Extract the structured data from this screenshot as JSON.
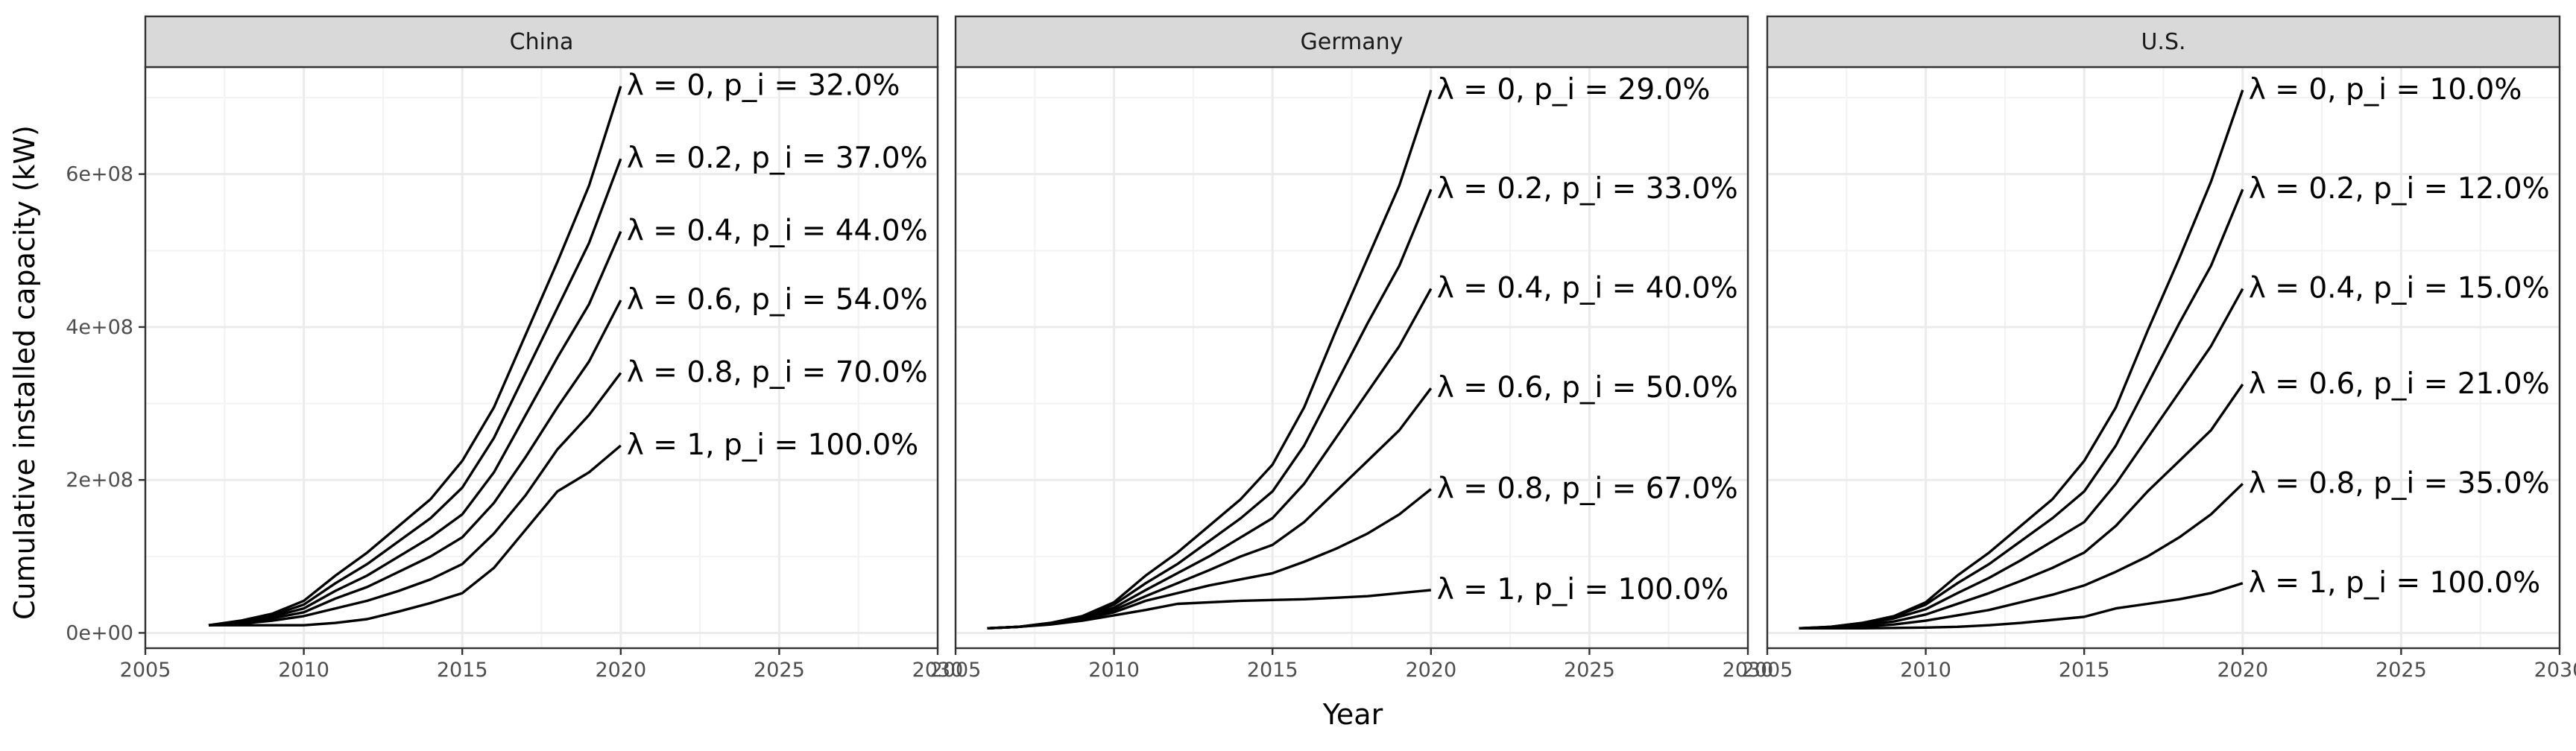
{
  "chart_data": {
    "type": "line",
    "facet_by": "country",
    "xlabel": "Year",
    "ylabel": "Cumulative installed capacity (kW)",
    "xlim": [
      2005,
      2030
    ],
    "ylim": [
      -20000000.0,
      740000000.0
    ],
    "x_ticks": [
      2005,
      2010,
      2015,
      2020,
      2025,
      2030
    ],
    "x_tick_labels": [
      "2005",
      "2010",
      "2015",
      "2020",
      "2025",
      "2030"
    ],
    "y_ticks": [
      0,
      200000000,
      400000000,
      600000000
    ],
    "y_tick_labels": [
      "0e+00",
      "2e+08",
      "4e+08",
      "6e+08"
    ],
    "grid": true,
    "legend": "none",
    "line_color": "#000000",
    "panels": [
      {
        "name": "China",
        "series": [
          {
            "name": "λ = 0, p_i = 32.0%",
            "x": [
              2007,
              2008,
              2009,
              2010,
              2011,
              2012,
              2013,
              2014,
              2015,
              2016,
              2017,
              2018,
              2019,
              2020
            ],
            "values": [
              10000000.0,
              16000000.0,
              25000000.0,
              42000000.0,
              75000000.0,
              105000000.0,
              140000000.0,
              175000000.0,
              225000000.0,
              295000000.0,
              390000000.0,
              485000000.0,
              585000000.0,
              715000000.0
            ]
          },
          {
            "name": "λ = 0.2, p_i = 37.0%",
            "x": [
              2007,
              2008,
              2009,
              2010,
              2011,
              2012,
              2013,
              2014,
              2015,
              2016,
              2017,
              2018,
              2019,
              2020
            ],
            "values": [
              10000000.0,
              15000000.0,
              23000000.0,
              37000000.0,
              65000000.0,
              90000000.0,
              120000000.0,
              150000000.0,
              190000000.0,
              255000000.0,
              340000000.0,
              425000000.0,
              510000000.0,
              620000000.0
            ]
          },
          {
            "name": "λ = 0.4, p_i = 44.0%",
            "x": [
              2007,
              2008,
              2009,
              2010,
              2011,
              2012,
              2013,
              2014,
              2015,
              2016,
              2017,
              2018,
              2019,
              2020
            ],
            "values": [
              10000000.0,
              14000000.0,
              21000000.0,
              32000000.0,
              55000000.0,
              75000000.0,
              100000000.0,
              125000000.0,
              155000000.0,
              210000000.0,
              285000000.0,
              360000000.0,
              430000000.0,
              525000000.0
            ]
          },
          {
            "name": "λ = 0.6, p_i = 54.0%",
            "x": [
              2007,
              2008,
              2009,
              2010,
              2011,
              2012,
              2013,
              2014,
              2015,
              2016,
              2017,
              2018,
              2019,
              2020
            ],
            "values": [
              10000000.0,
              13000000.0,
              19000000.0,
              27000000.0,
              45000000.0,
              60000000.0,
              80000000.0,
              100000000.0,
              125000000.0,
              170000000.0,
              230000000.0,
              295000000.0,
              355000000.0,
              435000000.0
            ]
          },
          {
            "name": "λ = 0.8, p_i = 70.0%",
            "x": [
              2007,
              2008,
              2009,
              2010,
              2011,
              2012,
              2013,
              2014,
              2015,
              2016,
              2017,
              2018,
              2019,
              2020
            ],
            "values": [
              10000000.0,
              12000000.0,
              16000000.0,
              22000000.0,
              32000000.0,
              42000000.0,
              55000000.0,
              70000000.0,
              90000000.0,
              130000000.0,
              180000000.0,
              240000000.0,
              285000000.0,
              340000000.0
            ]
          },
          {
            "name": "λ = 1, p_i = 100.0%",
            "x": [
              2007,
              2008,
              2009,
              2010,
              2011,
              2012,
              2013,
              2014,
              2015,
              2016,
              2017,
              2018,
              2019,
              2020
            ],
            "values": [
              10000000.0,
              10000000.0,
              10000000.0,
              10000000.0,
              13000000.0,
              18000000.0,
              28000000.0,
              39000000.0,
              52000000.0,
              85000000.0,
              135000000.0,
              185000000.0,
              210000000.0,
              245000000.0
            ]
          }
        ]
      },
      {
        "name": "Germany",
        "series": [
          {
            "name": "λ = 0, p_i = 29.0%",
            "x": [
              2006,
              2007,
              2008,
              2009,
              2010,
              2011,
              2012,
              2013,
              2014,
              2015,
              2016,
              2017,
              2018,
              2019,
              2020
            ],
            "values": [
              6000000.0,
              8000000.0,
              13000000.0,
              22000000.0,
              40000000.0,
              75000000.0,
              105000000.0,
              140000000.0,
              175000000.0,
              220000000.0,
              295000000.0,
              395000000.0,
              490000000.0,
              585000000.0,
              710000000.0
            ]
          },
          {
            "name": "λ = 0.2, p_i = 33.0%",
            "x": [
              2006,
              2007,
              2008,
              2009,
              2010,
              2011,
              2012,
              2013,
              2014,
              2015,
              2016,
              2017,
              2018,
              2019,
              2020
            ],
            "values": [
              6000000.0,
              8000000.0,
              13000000.0,
              21000000.0,
              37000000.0,
              65000000.0,
              90000000.0,
              120000000.0,
              150000000.0,
              185000000.0,
              245000000.0,
              325000000.0,
              405000000.0,
              480000000.0,
              580000000.0
            ]
          },
          {
            "name": "λ = 0.4, p_i = 40.0%",
            "x": [
              2006,
              2007,
              2008,
              2009,
              2010,
              2011,
              2012,
              2013,
              2014,
              2015,
              2016,
              2017,
              2018,
              2019,
              2020
            ],
            "values": [
              6000000.0,
              8000000.0,
              12500000.0,
              20000000.0,
              33000000.0,
              56000000.0,
              78000000.0,
              100000000.0,
              125000000.0,
              150000000.0,
              195000000.0,
              255000000.0,
              315000000.0,
              375000000.0,
              450000000.0
            ]
          },
          {
            "name": "λ = 0.6, p_i = 50.0%",
            "x": [
              2006,
              2007,
              2008,
              2009,
              2010,
              2011,
              2012,
              2013,
              2014,
              2015,
              2016,
              2017,
              2018,
              2019,
              2020
            ],
            "values": [
              6000000.0,
              8000000.0,
              12000000.0,
              19000000.0,
              30000000.0,
              48000000.0,
              65000000.0,
              82000000.0,
              100000000.0,
              115000000.0,
              145000000.0,
              185000000.0,
              225000000.0,
              265000000.0,
              320000000.0
            ]
          },
          {
            "name": "λ = 0.8, p_i = 67.0%",
            "x": [
              2006,
              2007,
              2008,
              2009,
              2010,
              2011,
              2012,
              2013,
              2014,
              2015,
              2016,
              2017,
              2018,
              2019,
              2020
            ],
            "values": [
              6000000.0,
              8000000.0,
              11500000.0,
              18000000.0,
              27000000.0,
              42000000.0,
              52000000.0,
              62000000.0,
              70000000.0,
              78000000.0,
              93000000.0,
              110000000.0,
              130000000.0,
              155000000.0,
              188000000.0
            ]
          },
          {
            "name": "λ = 1, p_i = 100.0%",
            "x": [
              2006,
              2007,
              2008,
              2009,
              2010,
              2011,
              2012,
              2013,
              2014,
              2015,
              2016,
              2017,
              2018,
              2019,
              2020
            ],
            "values": [
              6000000.0,
              8000000.0,
              11000000.0,
              16000000.0,
              23000000.0,
              30000000.0,
              38000000.0,
              40000000.0,
              42000000.0,
              43000000.0,
              44000000.0,
              46000000.0,
              48000000.0,
              52000000.0,
              56000000.0
            ]
          }
        ]
      },
      {
        "name": "U.S.",
        "series": [
          {
            "name": "λ = 0, p_i = 10.0%",
            "x": [
              2006,
              2007,
              2008,
              2009,
              2010,
              2011,
              2012,
              2013,
              2014,
              2015,
              2016,
              2017,
              2018,
              2019,
              2020
            ],
            "values": [
              6000000.0,
              8000000.0,
              13000000.0,
              22000000.0,
              40000000.0,
              75000000.0,
              105000000.0,
              140000000.0,
              175000000.0,
              225000000.0,
              295000000.0,
              395000000.0,
              490000000.0,
              590000000.0,
              710000000.0
            ]
          },
          {
            "name": "λ = 0.2, p_i = 12.0%",
            "x": [
              2006,
              2007,
              2008,
              2009,
              2010,
              2011,
              2012,
              2013,
              2014,
              2015,
              2016,
              2017,
              2018,
              2019,
              2020
            ],
            "values": [
              6000000.0,
              8000000.0,
              13000000.0,
              21000000.0,
              37000000.0,
              65000000.0,
              90000000.0,
              120000000.0,
              150000000.0,
              185000000.0,
              245000000.0,
              325000000.0,
              405000000.0,
              480000000.0,
              580000000.0
            ]
          },
          {
            "name": "λ = 0.4, p_i = 15.0%",
            "x": [
              2006,
              2007,
              2008,
              2009,
              2010,
              2011,
              2012,
              2013,
              2014,
              2015,
              2016,
              2017,
              2018,
              2019,
              2020
            ],
            "values": [
              6000000.0,
              7500000.0,
              12000000.0,
              19000000.0,
              31000000.0,
              52000000.0,
              72000000.0,
              95000000.0,
              120000000.0,
              145000000.0,
              195000000.0,
              255000000.0,
              315000000.0,
              375000000.0,
              450000000.0
            ]
          },
          {
            "name": "λ = 0.6, p_i = 21.0%",
            "x": [
              2006,
              2007,
              2008,
              2009,
              2010,
              2011,
              2012,
              2013,
              2014,
              2015,
              2016,
              2017,
              2018,
              2019,
              2020
            ],
            "values": [
              6000000.0,
              7000000.0,
              10000000.0,
              15000000.0,
              24000000.0,
              38000000.0,
              52000000.0,
              68000000.0,
              85000000.0,
              105000000.0,
              140000000.0,
              185000000.0,
              225000000.0,
              265000000.0,
              325000000.0
            ]
          },
          {
            "name": "λ = 0.8, p_i = 35.0%",
            "x": [
              2006,
              2007,
              2008,
              2009,
              2010,
              2011,
              2012,
              2013,
              2014,
              2015,
              2016,
              2017,
              2018,
              2019,
              2020
            ],
            "values": [
              6000000.0,
              6500000.0,
              8000000.0,
              11000000.0,
              16000000.0,
              23000000.0,
              30000000.0,
              40000000.0,
              50000000.0,
              62000000.0,
              80000000.0,
              100000000.0,
              125000000.0,
              155000000.0,
              195000000.0
            ]
          },
          {
            "name": "λ = 1, p_i = 100.0%",
            "x": [
              2006,
              2007,
              2008,
              2009,
              2010,
              2011,
              2012,
              2013,
              2014,
              2015,
              2016,
              2017,
              2018,
              2019,
              2020
            ],
            "values": [
              6000000.0,
              6000000.0,
              6000000.0,
              6500000.0,
              7000000.0,
              8000000.0,
              10000000.0,
              13000000.0,
              17000000.0,
              21000000.0,
              32000000.0,
              38000000.0,
              44000000.0,
              52000000.0,
              65000000.0
            ]
          }
        ]
      }
    ]
  }
}
